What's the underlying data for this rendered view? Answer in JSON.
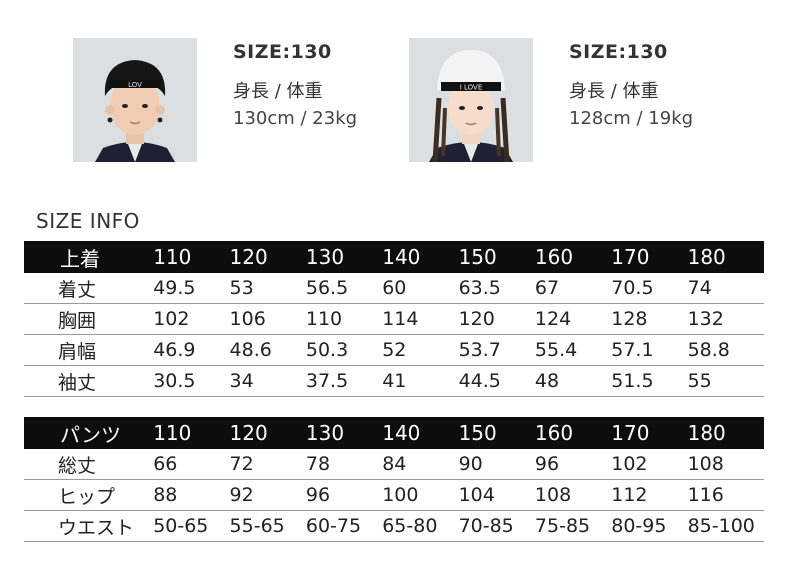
{
  "models": [
    {
      "size": "SIZE:130",
      "hw_label": "身長 / 体重",
      "hw_value": "130cm / 23kg"
    },
    {
      "size": "SIZE:130",
      "hw_label": "身長 / 体重",
      "hw_value": "128cm / 19kg"
    }
  ],
  "section_title": "SIZE INFO",
  "top_table": {
    "header": [
      "上着",
      "110",
      "120",
      "130",
      "140",
      "150",
      "160",
      "170",
      "180"
    ],
    "rows": [
      [
        "着丈",
        "49.5",
        "53",
        "56.5",
        "60",
        "63.5",
        "67",
        "70.5",
        "74"
      ],
      [
        "胸囲",
        "102",
        "106",
        "110",
        "114",
        "120",
        "124",
        "128",
        "132"
      ],
      [
        "肩幅",
        "46.9",
        "48.6",
        "50.3",
        "52",
        "53.7",
        "55.4",
        "57.1",
        "58.8"
      ],
      [
        "袖丈",
        "30.5",
        "34",
        "37.5",
        "41",
        "44.5",
        "48",
        "51.5",
        "55"
      ]
    ]
  },
  "pants_table": {
    "header": [
      "パンツ",
      "110",
      "120",
      "130",
      "140",
      "150",
      "160",
      "170",
      "180"
    ],
    "rows": [
      [
        "総丈",
        "66",
        "72",
        "78",
        "84",
        "90",
        "96",
        "102",
        "108"
      ],
      [
        "ヒップ",
        "88",
        "92",
        "96",
        "100",
        "104",
        "108",
        "112",
        "116"
      ],
      [
        "ウエスト",
        "50-65",
        "55-65",
        "60-75",
        "65-80",
        "70-85",
        "75-85",
        "80-95",
        "85-100"
      ]
    ]
  },
  "colors": {
    "header_bg": "#0d0d0d",
    "header_text": "#ffffff",
    "photo_bg": "#d9dcdf"
  }
}
